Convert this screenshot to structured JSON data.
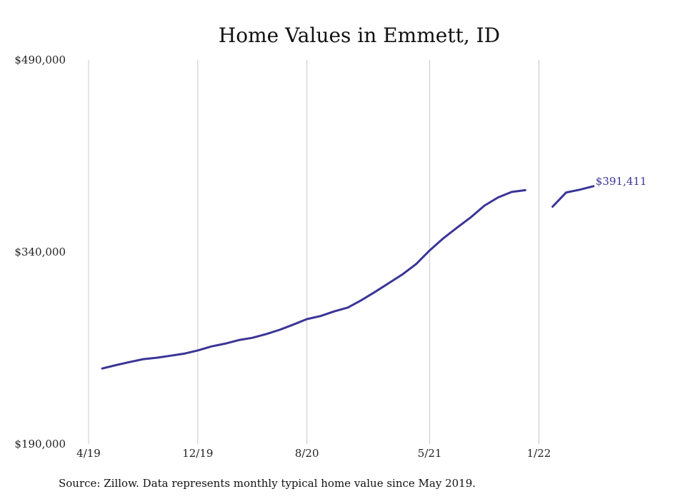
{
  "chart_data": {
    "type": "line",
    "title": "Home Values in Emmett, ID",
    "source": "Source: Zillow. Data represents monthly typical home value since May 2019.",
    "ylim": [
      190000,
      490000
    ],
    "y_ticks": [
      190000,
      340000,
      490000
    ],
    "y_tick_labels": [
      "$190,000",
      "$340,000",
      "$490,000"
    ],
    "x_ticks": [
      "2019-04",
      "2019-12",
      "2020-08",
      "2021-05",
      "2022-01"
    ],
    "x_tick_labels": [
      "4/19",
      "12/19",
      "8/20",
      "5/21",
      "1/22"
    ],
    "xlim": [
      "2019-04",
      "2022-06"
    ],
    "grid": "vertical",
    "color": "#3a3596",
    "end_label": "$391,411",
    "series": [
      {
        "segments": [
          {
            "x": [
              "2019-05",
              "2019-06",
              "2019-07",
              "2019-08",
              "2019-09",
              "2019-10",
              "2019-11",
              "2019-12",
              "2020-01",
              "2020-02",
              "2020-03",
              "2020-04",
              "2020-05",
              "2020-06",
              "2020-07",
              "2020-08",
              "2020-09",
              "2020-10",
              "2020-11",
              "2020-12",
              "2021-01",
              "2021-02",
              "2021-03",
              "2021-04",
              "2021-05",
              "2021-06",
              "2021-07",
              "2021-08",
              "2021-09",
              "2021-10",
              "2021-11",
              "2021-12"
            ],
            "y": [
              249000,
              251600,
              254000,
              256300,
              257400,
              259000,
              260600,
              263100,
              266200,
              268400,
              271200,
              273000,
              275800,
              279200,
              283300,
              287600,
              290000,
              293600,
              296600,
              302400,
              308900,
              315700,
              322500,
              330600,
              341300,
              350700,
              359000,
              367000,
              376200,
              382600,
              386900,
              388300
            ]
          },
          {
            "x": [
              "2022-02",
              "2022-03",
              "2022-04",
              "2022-05"
            ],
            "y": [
              375400,
              386500,
              388700,
              391411
            ]
          }
        ]
      }
    ]
  }
}
